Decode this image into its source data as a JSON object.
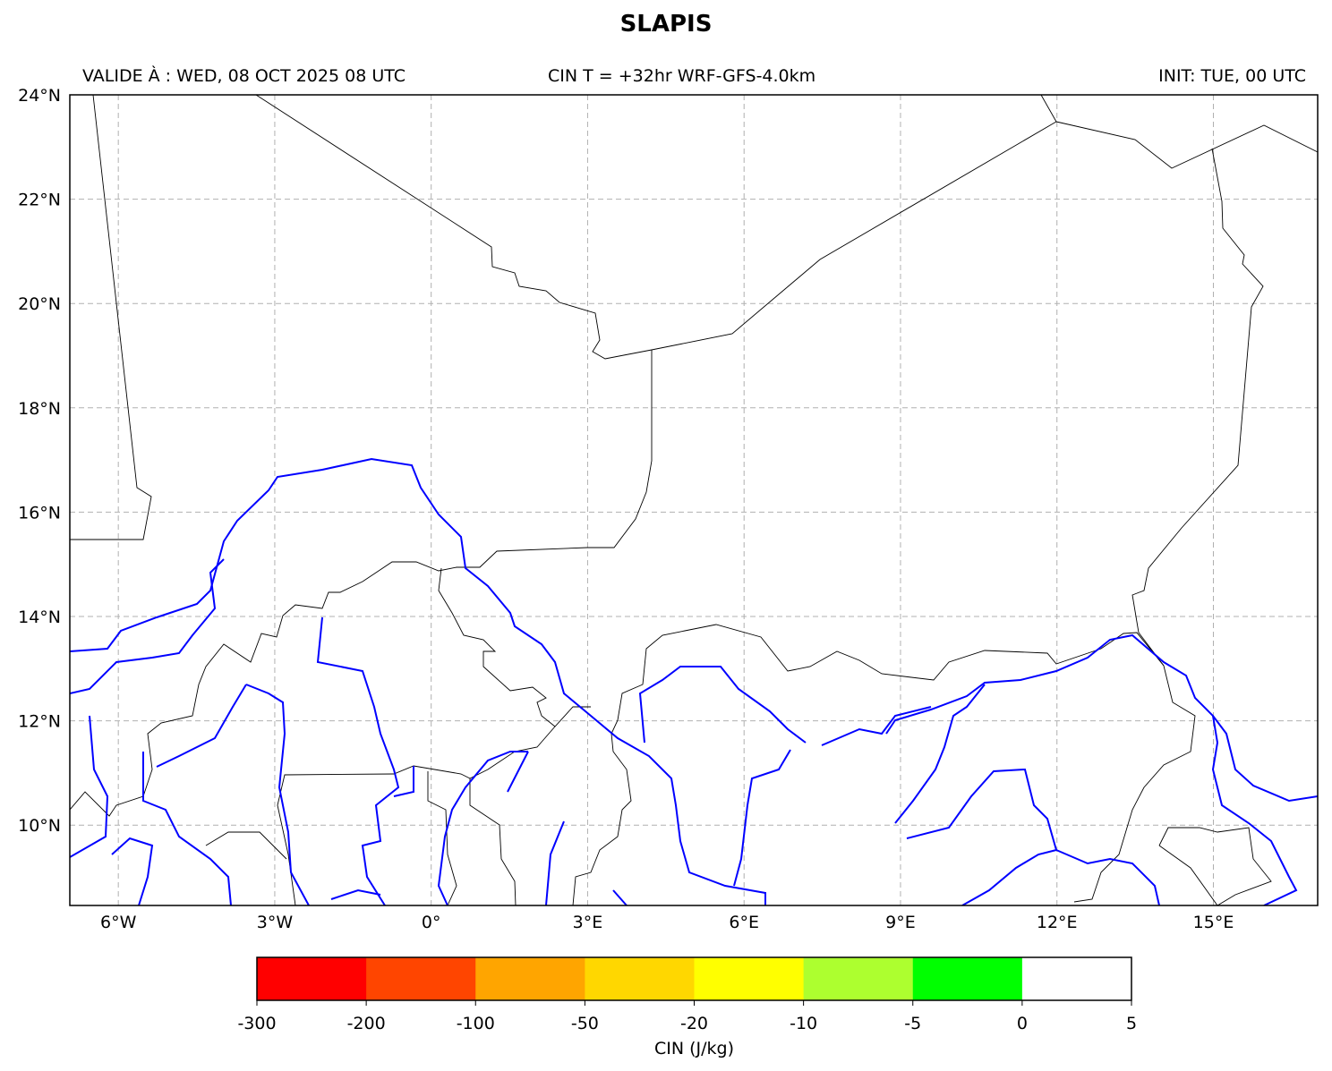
{
  "title": "SLAPIS",
  "header": {
    "valid": "VALIDE À : WED, 08 OCT 2025 08 UTC",
    "center": "CIN T = +32hr WRF-GFS-4.0km",
    "init": "INIT: TUE, 00 UTC"
  },
  "map": {
    "lon_range": [
      -6.93,
      17.0
    ],
    "lat_range": [
      8.46,
      24.0
    ],
    "gridlines": true,
    "border_color": "#000000",
    "river_color": "#0000ff",
    "lon_ticks": [
      {
        "value": -6,
        "label": "6°W"
      },
      {
        "value": -3,
        "label": "3°W"
      },
      {
        "value": 0,
        "label": "0°"
      },
      {
        "value": 3,
        "label": "3°E"
      },
      {
        "value": 6,
        "label": "6°E"
      },
      {
        "value": 9,
        "label": "9°E"
      },
      {
        "value": 12,
        "label": "12°E"
      },
      {
        "value": 15,
        "label": "15°E"
      }
    ],
    "lat_ticks": [
      {
        "value": 24,
        "label": "24°N"
      },
      {
        "value": 22,
        "label": "22°N"
      },
      {
        "value": 20,
        "label": "20°N"
      },
      {
        "value": 18,
        "label": "18°N"
      },
      {
        "value": 16,
        "label": "16°N"
      },
      {
        "value": 14,
        "label": "14°N"
      },
      {
        "value": 12,
        "label": "12°N"
      },
      {
        "value": 10,
        "label": "10°N"
      }
    ]
  },
  "colorbar": {
    "label": "CIN (J/kg)",
    "ticks": [
      "-300",
      "-200",
      "-100",
      "-50",
      "-20",
      "-10",
      "-5",
      "0",
      "5"
    ],
    "colors": [
      "#ff0000",
      "#ff4500",
      "#ffa500",
      "#ffd700",
      "#ffff00",
      "#adff2f",
      "#00ff00",
      "#ffffff"
    ]
  }
}
